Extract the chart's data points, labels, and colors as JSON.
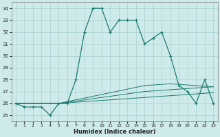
{
  "xlabel": "Humidex (Indice chaleur)",
  "x": [
    0,
    1,
    2,
    3,
    4,
    5,
    6,
    7,
    8,
    9,
    10,
    11,
    12,
    13,
    14,
    15,
    16,
    17,
    18,
    19,
    20,
    21,
    22,
    23
  ],
  "y_main": [
    26,
    25.7,
    25.7,
    25.7,
    25,
    26,
    26,
    28,
    32,
    34,
    34,
    32,
    33,
    33,
    33,
    31,
    31.5,
    32,
    30,
    27.5,
    27,
    26,
    28,
    26
  ],
  "y_line1": [
    26,
    26,
    26,
    26,
    26,
    26,
    26.05,
    26.1,
    26.15,
    26.2,
    26.25,
    26.3,
    26.35,
    26.4,
    26.45,
    26.5,
    26.55,
    26.6,
    26.65,
    26.7,
    26.75,
    26.8,
    26.85,
    26.9
  ],
  "y_line2": [
    26,
    26,
    26,
    26,
    26,
    26,
    26.1,
    26.2,
    26.3,
    26.4,
    26.5,
    26.6,
    26.7,
    26.8,
    26.9,
    27.0,
    27.05,
    27.1,
    27.15,
    27.2,
    27.25,
    27.3,
    27.35,
    27.4
  ],
  "y_line3": [
    26,
    26,
    26,
    26,
    26,
    26,
    26.15,
    26.3,
    26.45,
    26.6,
    26.75,
    26.9,
    27.05,
    27.2,
    27.35,
    27.5,
    27.55,
    27.6,
    27.65,
    27.6,
    27.55,
    27.5,
    27.45,
    27.4
  ],
  "line_color": "#1a7a6e",
  "bg_color": "#ceeaea",
  "grid_color": "#aacfcf",
  "ylim": [
    24.5,
    34.5
  ],
  "xlim": [
    -0.5,
    23.5
  ],
  "yticks": [
    25,
    26,
    27,
    28,
    29,
    30,
    31,
    32,
    33,
    34
  ],
  "xticks": [
    0,
    1,
    2,
    3,
    4,
    5,
    6,
    7,
    8,
    9,
    10,
    11,
    12,
    13,
    14,
    15,
    16,
    17,
    18,
    19,
    20,
    21,
    22,
    23
  ]
}
